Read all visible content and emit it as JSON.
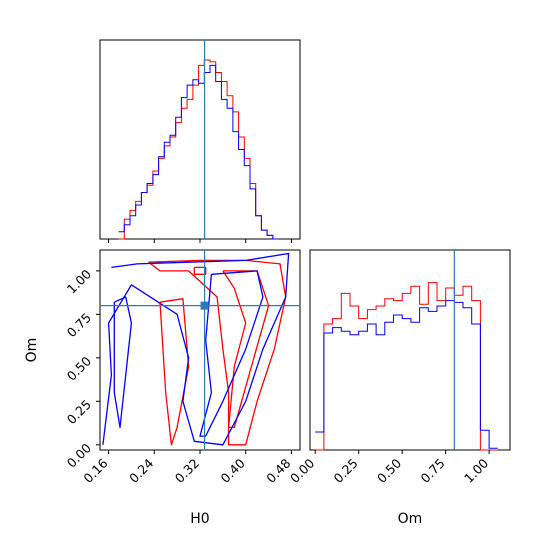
{
  "chart_data": {
    "type": "corner",
    "parameters": [
      "H0",
      "Om"
    ],
    "truth": {
      "H0": 0.328,
      "Om": 0.8
    },
    "series_colors": [
      "#ff0000",
      "#0000ff"
    ],
    "truth_color": "#2b7bb9",
    "axes": {
      "H0": {
        "label": "H0",
        "range": [
          0.145,
          0.495
        ],
        "ticks": [
          0.16,
          0.24,
          0.32,
          0.4,
          0.48
        ],
        "tick_labels": [
          "0.16",
          "0.24",
          "0.32",
          "0.40",
          "0.48"
        ]
      },
      "Om": {
        "label": "Om",
        "range": [
          -0.03,
          1.12
        ],
        "ticks": [
          0.0,
          0.25,
          0.5,
          0.75,
          1.0
        ],
        "tick_labels": [
          "0.00",
          "0.25",
          "0.50",
          "0.75",
          "1.00"
        ]
      }
    },
    "hist_H0": {
      "bin_edges": [
        0.1775,
        0.1875,
        0.1975,
        0.2075,
        0.2175,
        0.2275,
        0.2375,
        0.2475,
        0.2575,
        0.2675,
        0.2775,
        0.2875,
        0.2975,
        0.3075,
        0.3175,
        0.3275,
        0.3375,
        0.3475,
        0.3575,
        0.3675,
        0.3775,
        0.3875,
        0.3975,
        0.4075,
        0.4175,
        0.4275,
        0.4375,
        0.4475,
        0.4575
      ],
      "series": [
        {
          "values": [
            0.0,
            0.11,
            0.16,
            0.21,
            0.26,
            0.3,
            0.38,
            0.45,
            0.52,
            0.57,
            0.65,
            0.73,
            0.78,
            0.86,
            0.97,
            1.0,
            0.99,
            0.93,
            0.88,
            0.8,
            0.71,
            0.57,
            0.45,
            0.31,
            0.13,
            0.05,
            0.02,
            0.0
          ]
        },
        {
          "values": [
            0.04,
            0.08,
            0.13,
            0.19,
            0.26,
            0.31,
            0.36,
            0.46,
            0.54,
            0.58,
            0.68,
            0.79,
            0.86,
            0.89,
            0.87,
            0.93,
            0.97,
            0.88,
            0.78,
            0.73,
            0.6,
            0.5,
            0.41,
            0.28,
            0.13,
            0.05,
            0.02,
            0.0
          ]
        }
      ]
    },
    "hist_Om": {
      "bin_edges": [
        -0.0,
        0.05,
        0.1,
        0.15,
        0.2,
        0.25,
        0.3,
        0.35,
        0.4,
        0.45,
        0.5,
        0.55,
        0.6,
        0.65,
        0.7,
        0.75,
        0.8,
        0.85,
        0.9,
        0.95,
        1.0,
        1.05
      ],
      "series": [
        {
          "values": [
            0.0,
            0.7,
            0.73,
            0.87,
            0.8,
            0.73,
            0.78,
            0.8,
            0.84,
            0.83,
            0.87,
            0.91,
            0.81,
            0.93,
            0.83,
            0.9,
            0.86,
            0.91,
            0.83,
            0.0,
            0.0
          ]
        },
        {
          "values": [
            0.1,
            0.65,
            0.68,
            0.66,
            0.64,
            0.66,
            0.7,
            0.64,
            0.71,
            0.75,
            0.73,
            0.71,
            0.79,
            0.77,
            0.8,
            0.83,
            0.82,
            0.79,
            0.7,
            0.11,
            0.01
          ]
        }
      ]
    },
    "contours": [
      {
        "series": 0,
        "level": "outer",
        "path": [
          [
            0.23,
            1.05
          ],
          [
            0.32,
            1.06
          ],
          [
            0.4,
            1.06
          ],
          [
            0.46,
            1.04
          ],
          [
            0.47,
            0.85
          ],
          [
            0.45,
            0.55
          ],
          [
            0.42,
            0.25
          ],
          [
            0.4,
            0.0
          ],
          [
            0.37,
            0.0
          ],
          [
            0.37,
            0.3
          ],
          [
            0.36,
            0.55
          ],
          [
            0.35,
            0.85
          ],
          [
            0.3,
            1.0
          ],
          [
            0.25,
            1.0
          ],
          [
            0.23,
            1.05
          ]
        ]
      },
      {
        "series": 0,
        "level": "inner",
        "path": [
          [
            0.36,
            1.0
          ],
          [
            0.42,
            1.0
          ],
          [
            0.44,
            0.8
          ],
          [
            0.41,
            0.45
          ],
          [
            0.38,
            0.1
          ],
          [
            0.37,
            0.1
          ],
          [
            0.38,
            0.45
          ],
          [
            0.4,
            0.7
          ],
          [
            0.38,
            0.9
          ],
          [
            0.36,
            1.0
          ]
        ]
      },
      {
        "series": 0,
        "level": "inner",
        "path": [
          [
            0.31,
            1.02
          ],
          [
            0.33,
            1.02
          ],
          [
            0.33,
            0.98
          ],
          [
            0.31,
            0.98
          ],
          [
            0.31,
            1.02
          ]
        ]
      },
      {
        "series": 0,
        "level": "inner",
        "path": [
          [
            0.25,
            0.82
          ],
          [
            0.29,
            0.84
          ],
          [
            0.3,
            0.45
          ],
          [
            0.28,
            0.1
          ],
          [
            0.27,
            0.0
          ],
          [
            0.26,
            0.3
          ],
          [
            0.25,
            0.82
          ]
        ]
      },
      {
        "series": 1,
        "level": "outer",
        "path": [
          [
            0.165,
            1.02
          ],
          [
            0.21,
            1.04
          ],
          [
            0.3,
            1.05
          ],
          [
            0.4,
            1.06
          ],
          [
            0.475,
            1.1
          ],
          [
            0.47,
            0.85
          ],
          [
            0.43,
            0.55
          ],
          [
            0.4,
            0.25
          ],
          [
            0.36,
            0.0
          ],
          [
            0.31,
            0.02
          ],
          [
            0.29,
            0.25
          ],
          [
            0.3,
            0.5
          ],
          [
            0.28,
            0.75
          ],
          [
            0.2,
            0.92
          ],
          [
            0.16,
            0.7
          ],
          [
            0.165,
            0.4
          ],
          [
            0.15,
            0.0
          ]
        ]
      },
      {
        "series": 1,
        "level": "inner",
        "path": [
          [
            0.17,
            0.82
          ],
          [
            0.19,
            0.85
          ],
          [
            0.2,
            0.7
          ],
          [
            0.19,
            0.4
          ],
          [
            0.18,
            0.1
          ],
          [
            0.17,
            0.3
          ],
          [
            0.17,
            0.82
          ]
        ]
      },
      {
        "series": 1,
        "level": "inner",
        "path": [
          [
            0.34,
            0.98
          ],
          [
            0.42,
            1.0
          ],
          [
            0.43,
            0.85
          ],
          [
            0.4,
            0.55
          ],
          [
            0.36,
            0.25
          ],
          [
            0.33,
            0.05
          ],
          [
            0.32,
            0.05
          ],
          [
            0.34,
            0.3
          ],
          [
            0.33,
            0.6
          ],
          [
            0.34,
            0.98
          ]
        ]
      }
    ]
  }
}
